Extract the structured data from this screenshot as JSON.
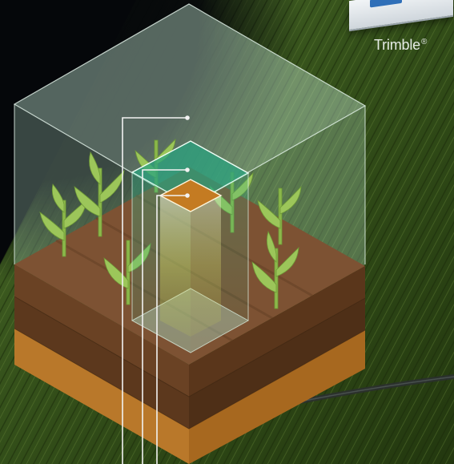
{
  "brand": {
    "name": "Trimble",
    "mark": "®"
  },
  "colors": {
    "field_dark": "#22330f",
    "field_mid": "#3e5a1c",
    "soil_top": "#7a4f2e",
    "soil_dark": "#5e3a1f",
    "soil_base": "#b97a2c",
    "volume_large": "#9fd6b8",
    "volume_medium": "#2ea882",
    "volume_small": "#c07a24",
    "plant": "#9ac45a",
    "callout_line": "#f2f2f2"
  }
}
